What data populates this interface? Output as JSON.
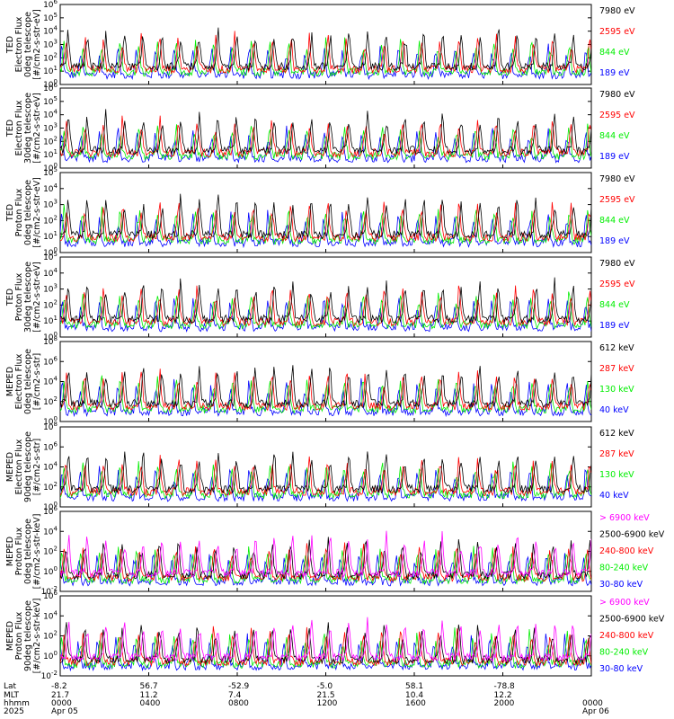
{
  "chart_data": [
    {
      "type": "line",
      "ylabel_lines": [
        "TED",
        "Electron Flux",
        "0deg telescope",
        "[#/cm2-s-str-eV]"
      ],
      "yscale": "log",
      "ylim_exp": [
        0,
        6
      ],
      "ytick_exponents": [
        0,
        1,
        2,
        3,
        4,
        5,
        6
      ],
      "series": [
        {
          "name": "7980 eV",
          "color": "#000000"
        },
        {
          "name": "2595 eV",
          "color": "#ff0000"
        },
        {
          "name": "844 eV",
          "color": "#00ee00"
        },
        {
          "name": "189 eV",
          "color": "#0000ff"
        }
      ]
    },
    {
      "type": "line",
      "ylabel_lines": [
        "TED",
        "Electron Flux",
        "30deg telescope",
        "[#/cm2-s-str-eV]"
      ],
      "yscale": "log",
      "ylim_exp": [
        0,
        6
      ],
      "ytick_exponents": [
        0,
        1,
        2,
        3,
        4,
        5,
        6
      ],
      "series": [
        {
          "name": "7980 eV",
          "color": "#000000"
        },
        {
          "name": "2595 eV",
          "color": "#ff0000"
        },
        {
          "name": "844 eV",
          "color": "#00ee00"
        },
        {
          "name": "189 eV",
          "color": "#0000ff"
        }
      ]
    },
    {
      "type": "line",
      "ylabel_lines": [
        "TED",
        "Proton Flux",
        "0deg telescope",
        "[#/cm2-s-str-eV]"
      ],
      "yscale": "log",
      "ylim_exp": [
        0,
        5
      ],
      "ytick_exponents": [
        0,
        1,
        2,
        3,
        4,
        5
      ],
      "series": [
        {
          "name": "7980 eV",
          "color": "#000000"
        },
        {
          "name": "2595 eV",
          "color": "#ff0000"
        },
        {
          "name": "844 eV",
          "color": "#00ee00"
        },
        {
          "name": "189 eV",
          "color": "#0000ff"
        }
      ]
    },
    {
      "type": "line",
      "ylabel_lines": [
        "TED",
        "Proton Flux",
        "30deg telescope",
        "[#/cm2-s-str-eV]"
      ],
      "yscale": "log",
      "ylim_exp": [
        0,
        5
      ],
      "ytick_exponents": [
        0,
        1,
        2,
        3,
        4,
        5
      ],
      "series": [
        {
          "name": "7980 eV",
          "color": "#000000"
        },
        {
          "name": "2595 eV",
          "color": "#ff0000"
        },
        {
          "name": "844 eV",
          "color": "#00ee00"
        },
        {
          "name": "189 eV",
          "color": "#0000ff"
        }
      ]
    },
    {
      "type": "line",
      "ylabel_lines": [
        "MEPED",
        "Electron Flux",
        "0deg telescope",
        "[#/cm2-s-str]"
      ],
      "yscale": "log",
      "ylim_exp": [
        0,
        8
      ],
      "ytick_exponents": [
        0,
        2,
        4,
        6,
        8
      ],
      "series": [
        {
          "name": "612 keV",
          "color": "#000000"
        },
        {
          "name": "287 keV",
          "color": "#ff0000"
        },
        {
          "name": "130 keV",
          "color": "#00ee00"
        },
        {
          "name": "40 keV",
          "color": "#0000ff"
        }
      ]
    },
    {
      "type": "line",
      "ylabel_lines": [
        "MEPED",
        "Electron Flux",
        "90deg telescope",
        "[#/cm2-s-str]"
      ],
      "yscale": "log",
      "ylim_exp": [
        0,
        8
      ],
      "ytick_exponents": [
        0,
        2,
        4,
        6,
        8
      ],
      "series": [
        {
          "name": "612 keV",
          "color": "#000000"
        },
        {
          "name": "287 keV",
          "color": "#ff0000"
        },
        {
          "name": "130 keV",
          "color": "#00ee00"
        },
        {
          "name": "40 keV",
          "color": "#0000ff"
        }
      ]
    },
    {
      "type": "line",
      "ylabel_lines": [
        "MEPED",
        "Proton Flux",
        "0deg telescope",
        "[#/cm2-s-str-keV]"
      ],
      "yscale": "log",
      "ylim_exp": [
        -2,
        6
      ],
      "ytick_exponents": [
        -2,
        0,
        2,
        4,
        6
      ],
      "series": [
        {
          "name": "> 6900 keV",
          "color": "#ff00ff"
        },
        {
          "name": "2500-6900 keV",
          "color": "#000000"
        },
        {
          "name": "240-800 keV",
          "color": "#ff0000"
        },
        {
          "name": "80-240 keV",
          "color": "#00ee00"
        },
        {
          "name": "30-80 keV",
          "color": "#0000ff"
        }
      ]
    },
    {
      "type": "line",
      "ylabel_lines": [
        "MEPED",
        "Proton Flux",
        "90deg telescope",
        "[#/cm2-s-str-keV]"
      ],
      "yscale": "log",
      "ylim_exp": [
        -2,
        6
      ],
      "ytick_exponents": [
        -2,
        0,
        2,
        4,
        6
      ],
      "series": [
        {
          "name": "> 6900 keV",
          "color": "#ff00ff"
        },
        {
          "name": "2500-6900 keV",
          "color": "#000000"
        },
        {
          "name": "240-800 keV",
          "color": "#ff0000"
        },
        {
          "name": "80-240 keV",
          "color": "#00ee00"
        },
        {
          "name": "30-80 keV",
          "color": "#0000ff"
        }
      ]
    }
  ],
  "x_axis": {
    "row_labels": [
      "Lat",
      "MLT",
      "hhmm",
      "2025"
    ],
    "columns": [
      {
        "lat": "-8.2",
        "mlt": "21.7",
        "hhmm": "0000",
        "date": "Apr 05"
      },
      {
        "lat": "56.7",
        "mlt": "11.2",
        "hhmm": "0400",
        "date": ""
      },
      {
        "lat": "-52.9",
        "mlt": "7.4",
        "hhmm": "0800",
        "date": ""
      },
      {
        "lat": "-5.0",
        "mlt": "21.5",
        "hhmm": "1200",
        "date": ""
      },
      {
        "lat": "58.1",
        "mlt": "10.4",
        "hhmm": "1600",
        "date": ""
      },
      {
        "lat": "-78.8",
        "mlt": "12.2",
        "hhmm": "2000",
        "date": ""
      },
      {
        "lat": "",
        "mlt": "",
        "hhmm": "0000",
        "date": "Apr 06"
      }
    ],
    "range_hours": [
      0,
      24
    ]
  }
}
